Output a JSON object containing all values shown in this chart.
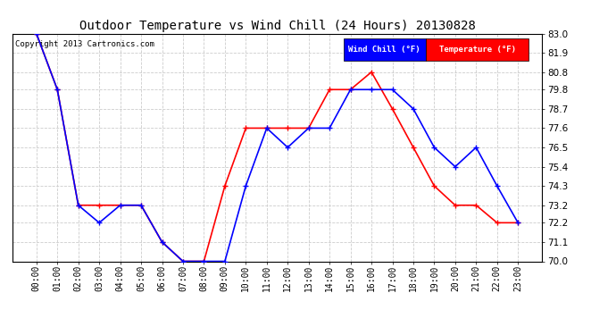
{
  "title": "Outdoor Temperature vs Wind Chill (24 Hours) 20130828",
  "copyright": "Copyright 2013 Cartronics.com",
  "background_color": "#ffffff",
  "grid_color": "#cccccc",
  "hours": [
    "00:00",
    "01:00",
    "02:00",
    "03:00",
    "04:00",
    "05:00",
    "06:00",
    "07:00",
    "08:00",
    "09:00",
    "10:00",
    "11:00",
    "12:00",
    "13:00",
    "14:00",
    "15:00",
    "16:00",
    "17:00",
    "18:00",
    "19:00",
    "20:00",
    "21:00",
    "22:00",
    "23:00"
  ],
  "temperature": [
    83.0,
    79.8,
    73.2,
    73.2,
    73.2,
    73.2,
    71.1,
    70.0,
    70.0,
    74.3,
    77.6,
    77.6,
    77.6,
    77.6,
    79.8,
    79.8,
    80.8,
    78.7,
    76.5,
    74.3,
    73.2,
    73.2,
    72.2,
    72.2
  ],
  "wind_chill": [
    83.0,
    79.8,
    73.2,
    72.2,
    73.2,
    73.2,
    71.1,
    70.0,
    70.0,
    70.0,
    74.3,
    77.6,
    76.5,
    77.6,
    77.6,
    79.8,
    79.8,
    79.8,
    78.7,
    76.5,
    75.4,
    76.5,
    74.3,
    72.2
  ],
  "temp_color": "#ff0000",
  "wc_color": "#0000ff",
  "ylim_min": 70.0,
  "ylim_max": 83.0,
  "yticks": [
    70.0,
    71.1,
    72.2,
    73.2,
    74.3,
    75.4,
    76.5,
    77.6,
    78.7,
    79.8,
    80.8,
    81.9,
    83.0
  ],
  "marker": "+",
  "linewidth": 1.2,
  "legend_wc_label": "Wind Chill (°F)",
  "legend_temp_label": "Temperature (°F)",
  "title_fontsize": 10,
  "tick_fontsize": 7,
  "ytick_fontsize": 7.5
}
